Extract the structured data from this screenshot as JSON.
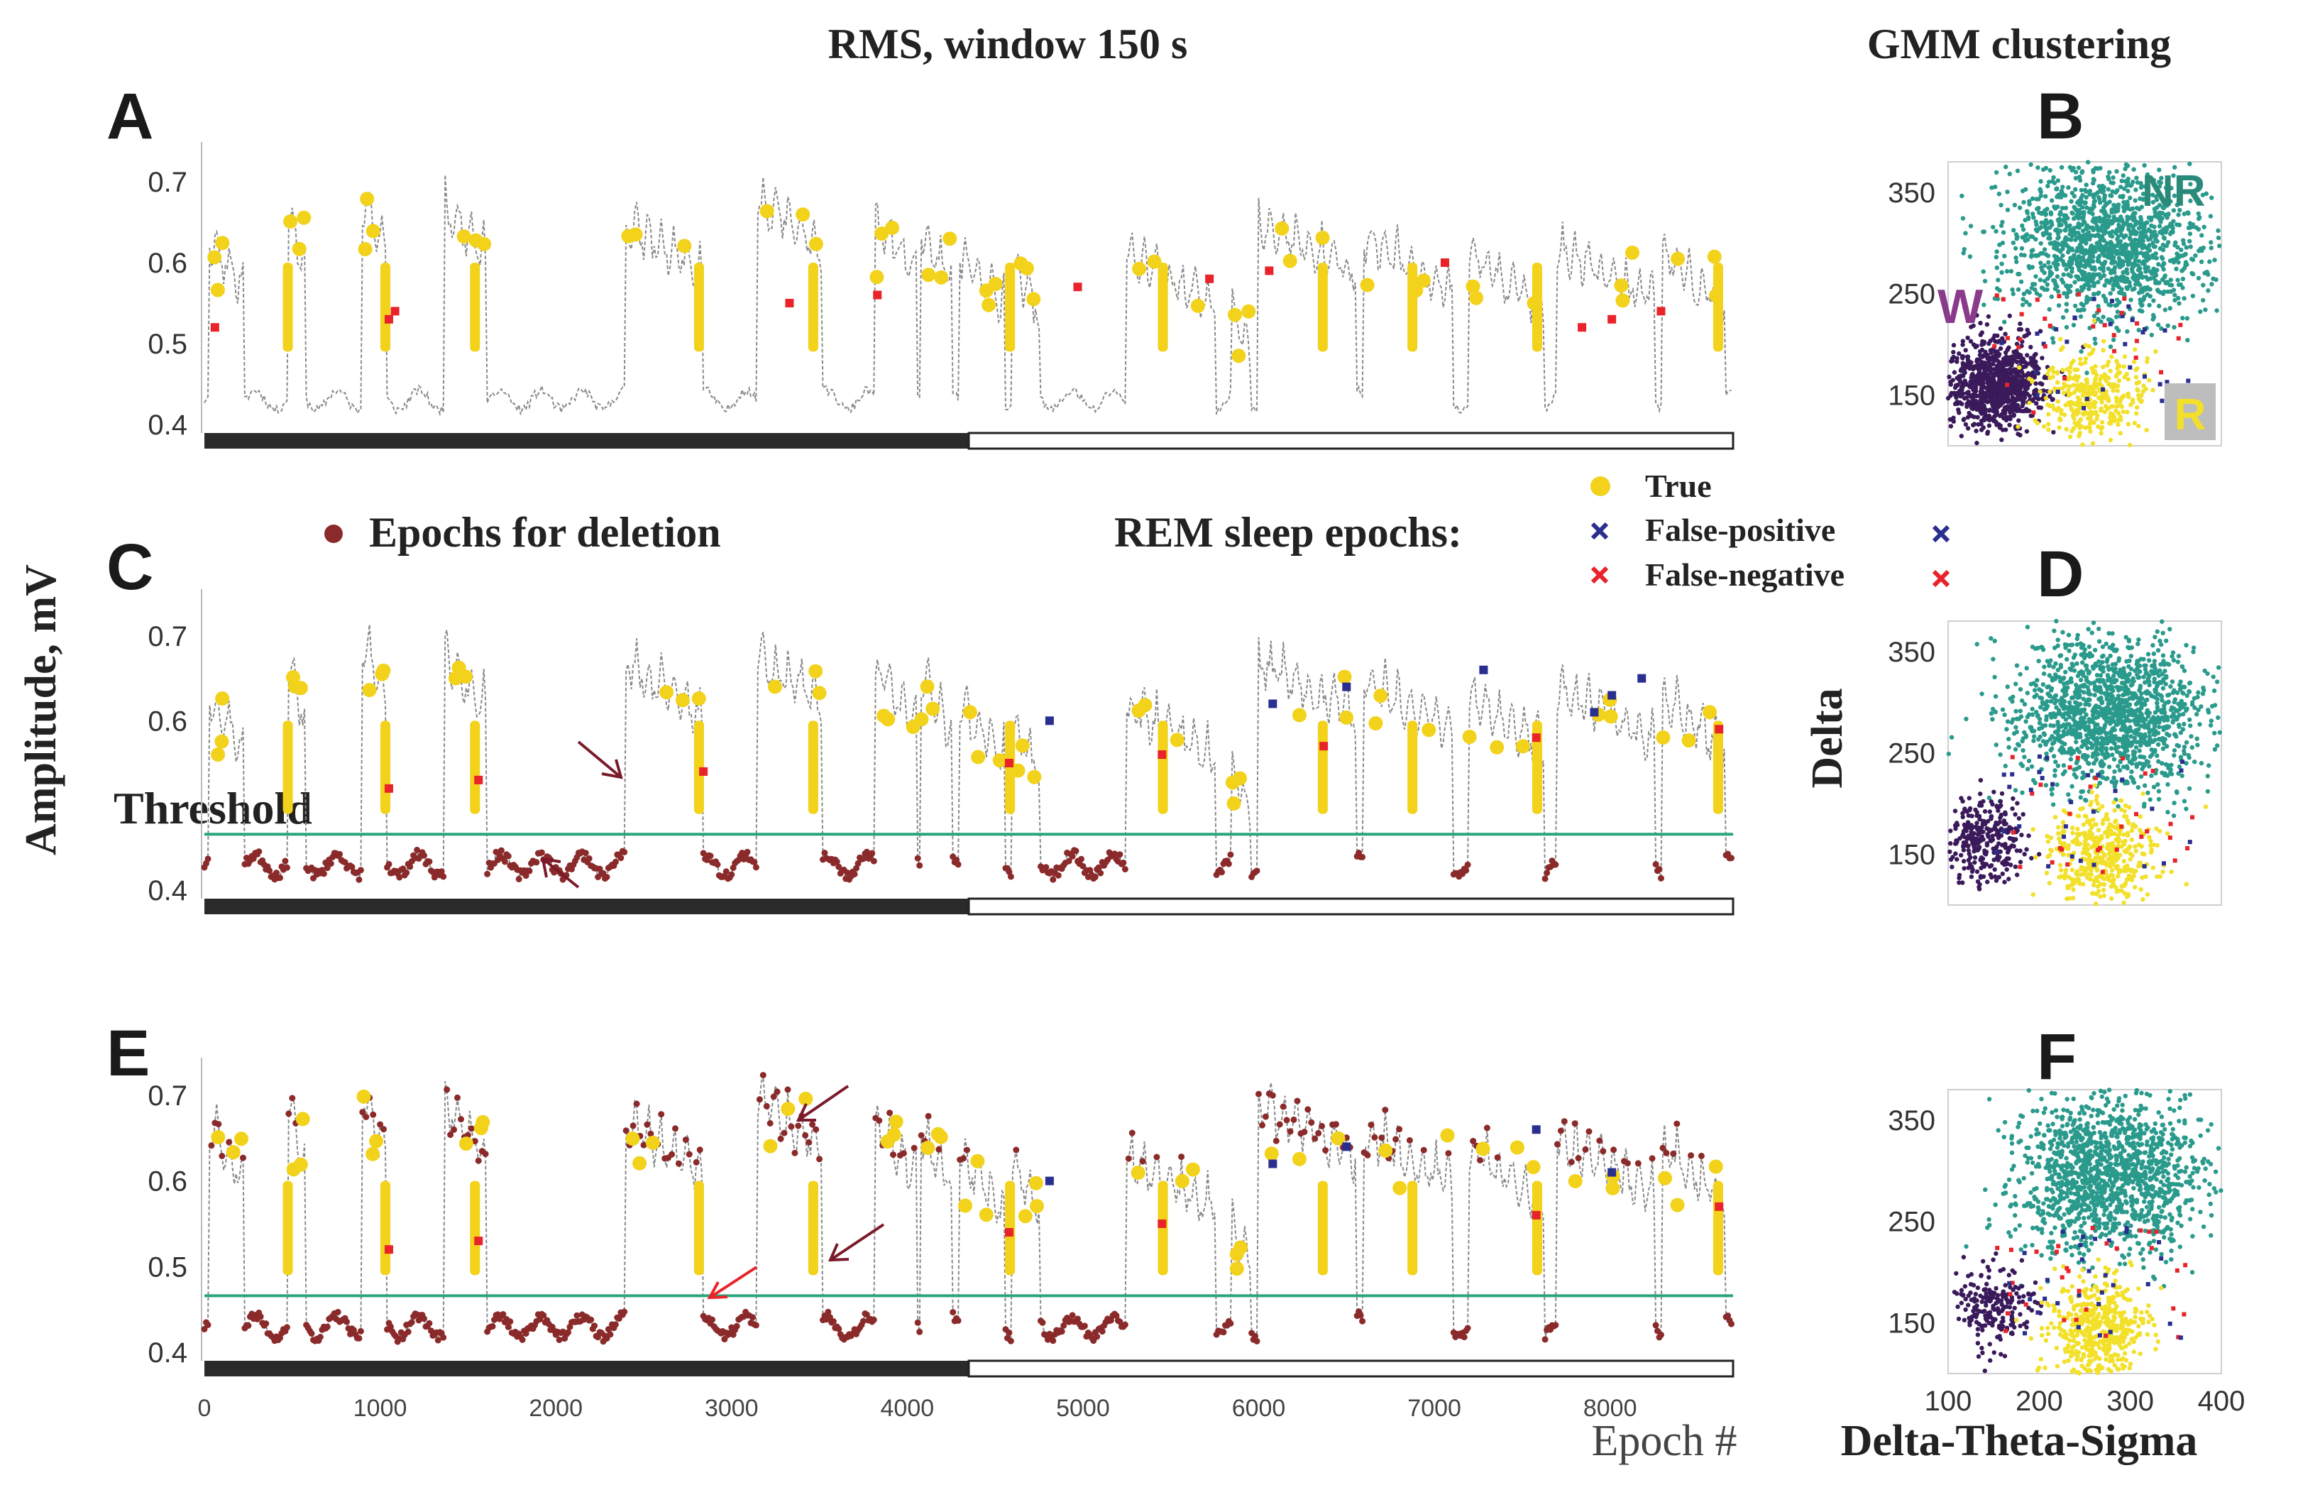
{
  "titles": {
    "rms": "RMS, window 150 s",
    "gmm": "GMM clustering"
  },
  "panel_letters": [
    "A",
    "B",
    "C",
    "D",
    "E",
    "F"
  ],
  "axes": {
    "amplitude_ylabel": "Amplitude, mV",
    "epoch_xlabel": "Epoch #",
    "delta_ylabel": "Delta",
    "dts_xlabel": "Delta-Theta-Sigma"
  },
  "legend": {
    "deletion_label": "Epochs for deletion",
    "rem_heading": "REM sleep epochs:",
    "true_label": "True",
    "false_positive_label": "False-positive",
    "false_negative_label": "False-negative",
    "threshold_label": "Threshold"
  },
  "cluster_labels": {
    "nr": "NR",
    "w": "W",
    "r": "R"
  },
  "colors": {
    "trace": "#8a8a8a",
    "deletion": "#8b2a2a",
    "true_rem": "#f2d21a",
    "false_positive": "#2a2f8f",
    "false_negative": "#e8232a",
    "threshold": "#2aa57a",
    "nr_cluster": "#2a9a8c",
    "w_cluster": "#3a1a5a",
    "r_cluster": "#f2e02a",
    "w_label": "#8a3a8a",
    "nr_label": "#2a8a7a",
    "light_bar": "#ffffff",
    "dark_bar": "#2a2a2a"
  },
  "chart_data": [
    {
      "panel": "A",
      "type": "line",
      "xlim": [
        0,
        8700
      ],
      "ylim": [
        0.4,
        0.75
      ],
      "yticks": [
        0.4,
        0.5,
        0.6,
        0.7
      ],
      "ytick_labels": [
        "0.4",
        "0.5",
        "0.6",
        "0.7"
      ],
      "threshold": null,
      "light_dark_bar": {
        "dark_until_epoch": 4350
      },
      "wake_bouts": [
        [
          30,
          220,
          0.66
        ],
        [
          480,
          570,
          0.69
        ],
        [
          900,
          1030,
          0.71
        ],
        [
          1370,
          1600,
          0.7
        ],
        [
          2400,
          2830,
          0.68
        ],
        [
          3150,
          3510,
          0.71
        ],
        [
          3820,
          4050,
          0.68
        ],
        [
          4080,
          4250,
          0.67
        ],
        [
          4300,
          4550,
          0.64
        ],
        [
          4600,
          4750,
          0.63
        ],
        [
          5250,
          5750,
          0.64
        ],
        [
          5850,
          5950,
          0.58
        ],
        [
          6000,
          6550,
          0.68
        ],
        [
          6600,
          7100,
          0.66
        ],
        [
          7200,
          7620,
          0.64
        ],
        [
          7700,
          8250,
          0.65
        ],
        [
          8300,
          8650,
          0.64
        ]
      ],
      "rem_true": [
        [
          470,
          480
        ],
        [
          1000,
          1060
        ],
        [
          1510,
          1570
        ],
        [
          2800,
          2830
        ],
        [
          3440,
          3490
        ],
        [
          4570,
          4600
        ],
        [
          5440,
          5470
        ],
        [
          6350,
          6380
        ],
        [
          6860,
          6890
        ],
        [
          7570,
          7600
        ],
        [
          8590,
          8640
        ]
      ],
      "deletion_segments": [],
      "false_positive_epochs": [],
      "false_negative_epochs": [
        60,
        1050,
        1085,
        3330,
        3830,
        4970,
        5720,
        6060,
        7060,
        7840,
        8010,
        8290
      ]
    },
    {
      "panel": "B",
      "type": "scatter",
      "xlim": [
        100,
        400
      ],
      "ylim": [
        100,
        380
      ],
      "yticks": [
        150,
        250,
        350
      ],
      "ytick_labels": [
        "150",
        "250",
        "350"
      ],
      "clusters": [
        {
          "label": "NR",
          "cx": 275,
          "cy": 300,
          "sx": 55,
          "sy": 38,
          "n": 1400,
          "color": "#2a9a8c"
        },
        {
          "label": "W",
          "cx": 150,
          "cy": 160,
          "sx": 28,
          "sy": 22,
          "n": 900,
          "color": "#3a1a5a"
        },
        {
          "label": "R",
          "cx": 260,
          "cy": 150,
          "sx": 30,
          "sy": 22,
          "n": 350,
          "color": "#f2e02a"
        }
      ]
    },
    {
      "panel": "C",
      "type": "line",
      "xlim": [
        0,
        8700
      ],
      "ylim": [
        0.4,
        0.75
      ],
      "yticks": [
        0.4,
        0.6,
        0.7
      ],
      "ytick_labels": [
        "0.4",
        "0.6",
        "0.7"
      ],
      "threshold": 0.466,
      "light_dark_bar": {
        "dark_until_epoch": 4350
      },
      "wake_bouts": [
        [
          30,
          220,
          0.66
        ],
        [
          480,
          570,
          0.69
        ],
        [
          900,
          1030,
          0.72
        ],
        [
          1370,
          1600,
          0.71
        ],
        [
          2400,
          2830,
          0.7
        ],
        [
          3150,
          3510,
          0.71
        ],
        [
          3820,
          4050,
          0.69
        ],
        [
          4080,
          4250,
          0.68
        ],
        [
          4300,
          4550,
          0.65
        ],
        [
          4600,
          4750,
          0.63
        ],
        [
          5250,
          5750,
          0.65
        ],
        [
          5850,
          5950,
          0.58
        ],
        [
          6000,
          6550,
          0.7
        ],
        [
          6600,
          7100,
          0.68
        ],
        [
          7200,
          7620,
          0.66
        ],
        [
          7700,
          8250,
          0.67
        ],
        [
          8300,
          8650,
          0.66
        ]
      ],
      "rem_true": [
        [
          470,
          480
        ],
        [
          1000,
          1060
        ],
        [
          1510,
          1570
        ],
        [
          2800,
          2830
        ],
        [
          3440,
          3490
        ],
        [
          4570,
          4600
        ],
        [
          5440,
          5470
        ],
        [
          6350,
          6380
        ],
        [
          6860,
          6890
        ],
        [
          7570,
          7600
        ],
        [
          8590,
          8640
        ]
      ],
      "deletion_segments": "below-threshold",
      "false_positive_epochs": [
        4810,
        6080,
        6500,
        7280,
        7910,
        8010,
        8180
      ],
      "false_negative_epochs": [
        1050,
        1560,
        2840,
        4580,
        5450,
        6370,
        7580,
        8620
      ]
    },
    {
      "panel": "D",
      "type": "scatter",
      "xlim": [
        100,
        400
      ],
      "ylim": [
        100,
        380
      ],
      "yticks": [
        150,
        250,
        350
      ],
      "ytick_labels": [
        "150",
        "250",
        "350"
      ],
      "clusters": [
        {
          "label": "NR",
          "cx": 275,
          "cy": 290,
          "sx": 52,
          "sy": 38,
          "n": 1400,
          "color": "#2a9a8c"
        },
        {
          "label": "W",
          "cx": 140,
          "cy": 165,
          "sx": 22,
          "sy": 20,
          "n": 300,
          "color": "#3a1a5a"
        },
        {
          "label": "R",
          "cx": 270,
          "cy": 150,
          "sx": 30,
          "sy": 24,
          "n": 450,
          "color": "#f2e02a"
        }
      ]
    },
    {
      "panel": "E",
      "type": "line",
      "xlim": [
        0,
        8700
      ],
      "ylim": [
        0.4,
        0.75
      ],
      "yticks": [
        0.4,
        0.5,
        0.6,
        0.7
      ],
      "ytick_labels": [
        "0.4",
        "0.5",
        "0.6",
        "0.7"
      ],
      "xticks": [
        0,
        1000,
        2000,
        3000,
        4000,
        5000,
        6000,
        7000,
        8000
      ],
      "xtick_labels": [
        "0",
        "1000",
        "2000",
        "3000",
        "4000",
        "5000",
        "6000",
        "7000",
        "8000"
      ],
      "threshold": 0.466,
      "light_dark_bar": {
        "dark_until_epoch": 4350
      },
      "wake_bouts": [
        [
          30,
          220,
          0.7
        ],
        [
          480,
          570,
          0.71
        ],
        [
          900,
          1030,
          0.73
        ],
        [
          1370,
          1600,
          0.72
        ],
        [
          2400,
          2830,
          0.7
        ],
        [
          3150,
          3510,
          0.73
        ],
        [
          3820,
          4050,
          0.7
        ],
        [
          4080,
          4250,
          0.69
        ],
        [
          4300,
          4550,
          0.66
        ],
        [
          4600,
          4750,
          0.65
        ],
        [
          5250,
          5750,
          0.66
        ],
        [
          5850,
          5950,
          0.59
        ],
        [
          6000,
          6550,
          0.72
        ],
        [
          6600,
          7100,
          0.69
        ],
        [
          7200,
          7620,
          0.67
        ],
        [
          7700,
          8250,
          0.68
        ],
        [
          8300,
          8650,
          0.67
        ]
      ],
      "rem_true": [
        [
          470,
          480
        ],
        [
          1000,
          1060
        ],
        [
          1510,
          1570
        ],
        [
          2800,
          2830
        ],
        [
          3440,
          3490
        ],
        [
          4570,
          4600
        ],
        [
          5440,
          5470
        ],
        [
          6350,
          6380
        ],
        [
          6860,
          6890
        ],
        [
          7570,
          7600
        ],
        [
          8590,
          8640
        ]
      ],
      "deletion_segments": "below-threshold-and-wake",
      "false_positive_epochs": [
        4810,
        6080,
        6500,
        7580,
        8010
      ],
      "false_negative_epochs": [
        1050,
        1560,
        4580,
        5450,
        7580,
        8620
      ]
    },
    {
      "panel": "F",
      "type": "scatter",
      "xlim": [
        100,
        400
      ],
      "ylim": [
        100,
        380
      ],
      "xticks": [
        100,
        200,
        300,
        400
      ],
      "xtick_labels": [
        "100",
        "200",
        "300",
        "400"
      ],
      "yticks": [
        150,
        250,
        350
      ],
      "ytick_labels": [
        "150",
        "250",
        "350"
      ],
      "clusters": [
        {
          "label": "NR",
          "cx": 275,
          "cy": 295,
          "sx": 52,
          "sy": 38,
          "n": 1400,
          "color": "#2a9a8c"
        },
        {
          "label": "W",
          "cx": 150,
          "cy": 165,
          "sx": 22,
          "sy": 20,
          "n": 200,
          "color": "#3a1a5a"
        },
        {
          "label": "R",
          "cx": 265,
          "cy": 145,
          "sx": 28,
          "sy": 24,
          "n": 500,
          "color": "#f2e02a"
        }
      ]
    }
  ]
}
